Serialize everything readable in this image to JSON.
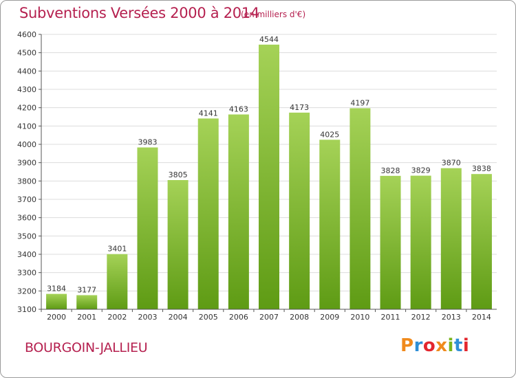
{
  "header": {
    "title": "Subventions Versées 2000 à 2014",
    "subtitle": "(en milliers d'€)"
  },
  "footer": {
    "city": "BOURGOIN-JALLIEU",
    "logo_text": "Proxiti",
    "logo_colors": [
      "#f08a1c",
      "#2f8fd6",
      "#e3262e",
      "#f08a1c",
      "#7ab51d",
      "#2f8fd6",
      "#e3262e"
    ]
  },
  "colors": {
    "title": "#b5204f",
    "bar_top": "#a5d257",
    "bar_bottom": "#5e9b14",
    "grid": "#dcdcdc",
    "axis": "#555555"
  },
  "chart_data": {
    "type": "bar",
    "title": "Subventions Versées 2000 à 2014",
    "subtitle": "(en milliers d'€)",
    "categories": [
      "2000",
      "2001",
      "2002",
      "2003",
      "2004",
      "2005",
      "2006",
      "2007",
      "2008",
      "2009",
      "2010",
      "2011",
      "2012",
      "2013",
      "2014"
    ],
    "values": [
      3184,
      3177,
      3401,
      3983,
      3805,
      4141,
      4163,
      4544,
      4173,
      4025,
      4197,
      3828,
      3829,
      3870,
      3838
    ],
    "ylim": [
      3100,
      4600
    ],
    "yticks": [
      3100,
      3200,
      3300,
      3400,
      3500,
      3600,
      3700,
      3800,
      3900,
      4000,
      4100,
      4200,
      4300,
      4400,
      4500,
      4600
    ],
    "grid": true,
    "data_labels": true
  }
}
